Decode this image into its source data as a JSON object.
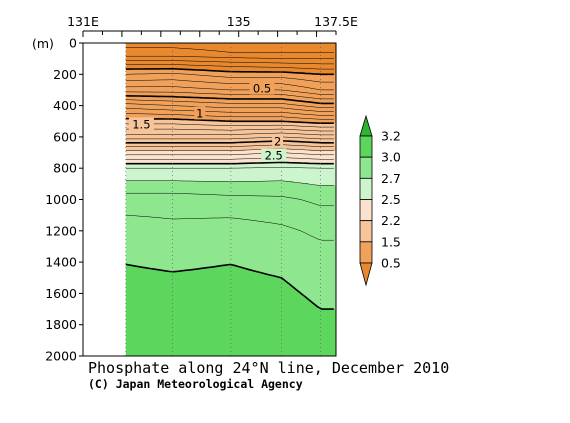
{
  "chart_data": {
    "type": "heatmap",
    "title": "Phosphate along 24°N line, December 2010",
    "credit": "(C) Japan Meteorological Agency",
    "x_axis": {
      "range": [
        131,
        137.5
      ],
      "tick_labels": [
        {
          "value": 131,
          "label": "131E"
        },
        {
          "value": 135,
          "label": "135"
        },
        {
          "value": 137.5,
          "label": "137.5E"
        }
      ]
    },
    "y_axis": {
      "unit_label": "(m)",
      "range": [
        0,
        2000
      ],
      "reversed": true,
      "ticks": [
        0,
        200,
        400,
        600,
        800,
        1000,
        1200,
        1400,
        1600,
        1800,
        2000
      ]
    },
    "data_start_lon": 132.1,
    "station_lons": [
      132.1,
      133.3,
      134.8,
      136.1,
      137.1
    ],
    "colorbar": {
      "labels": [
        "0.5",
        "1.5",
        "2.2",
        "2.5",
        "2.7",
        "3.0",
        "3.2"
      ],
      "levels": [
        0.5,
        1.5,
        2.2,
        2.5,
        2.7,
        3.0,
        3.2
      ],
      "bands": [
        {
          "range": [
            null,
            0.5
          ],
          "color": "#e8892f"
        },
        {
          "range": [
            0.5,
            1.5
          ],
          "color": "#f0a15a"
        },
        {
          "range": [
            1.5,
            2.2
          ],
          "color": "#f7c59a"
        },
        {
          "range": [
            2.2,
            2.5
          ],
          "color": "#fbe2cc"
        },
        {
          "range": [
            2.5,
            2.7
          ],
          "color": "#cdf5cd"
        },
        {
          "range": [
            2.7,
            3.0
          ],
          "color": "#8ee68e"
        },
        {
          "range": [
            3.0,
            3.2
          ],
          "color": "#5cd65c"
        },
        {
          "range": [
            3.2,
            null
          ],
          "color": "#2fb42f"
        }
      ]
    },
    "contour_labels": [
      {
        "text": "0.5",
        "value": 0.5,
        "lon": 135.6,
        "depth": 290
      },
      {
        "text": "1",
        "value": 1.0,
        "lon": 134.0,
        "depth": 450
      },
      {
        "text": "1.5",
        "value": 1.5,
        "lon": 132.5,
        "depth": 520
      },
      {
        "text": "2",
        "value": 2.0,
        "lon": 136.0,
        "depth": 630
      },
      {
        "text": "2.5",
        "value": 2.5,
        "lon": 135.9,
        "depth": 720
      }
    ],
    "profiles": [
      {
        "lon": 132.1,
        "depths": [
          0,
          60,
          100,
          150,
          200,
          300,
          400,
          500,
          600,
          700,
          800,
          1000,
          1200,
          1500,
          1800,
          2000
        ],
        "values": [
          0.08,
          0.12,
          0.25,
          0.45,
          0.6,
          0.85,
          1.25,
          1.55,
          1.85,
          2.25,
          2.6,
          2.85,
          2.95,
          3.02,
          3.05,
          3.06
        ]
      },
      {
        "lon": 133.3,
        "depths": [
          0,
          60,
          100,
          150,
          200,
          300,
          400,
          500,
          600,
          700,
          800,
          1000,
          1200,
          1500,
          1800,
          2000
        ],
        "values": [
          0.08,
          0.12,
          0.25,
          0.45,
          0.62,
          0.85,
          1.2,
          1.55,
          1.85,
          2.25,
          2.6,
          2.85,
          2.93,
          3.01,
          3.04,
          3.06
        ]
      },
      {
        "lon": 134.8,
        "depths": [
          0,
          60,
          100,
          150,
          200,
          300,
          400,
          500,
          600,
          700,
          800,
          1000,
          1200,
          1500,
          1800,
          2000
        ],
        "values": [
          0.07,
          0.1,
          0.22,
          0.4,
          0.55,
          0.8,
          1.15,
          1.5,
          1.85,
          2.25,
          2.6,
          2.83,
          2.95,
          3.02,
          3.05,
          3.07
        ]
      },
      {
        "lon": 136.1,
        "depths": [
          0,
          60,
          100,
          150,
          200,
          300,
          400,
          500,
          600,
          700,
          800,
          1000,
          1200,
          1500,
          1800,
          2000
        ],
        "values": [
          0.07,
          0.1,
          0.2,
          0.38,
          0.55,
          0.8,
          1.15,
          1.5,
          1.9,
          2.3,
          2.62,
          2.82,
          2.92,
          3.0,
          3.03,
          3.05
        ]
      },
      {
        "lon": 137.1,
        "depths": [
          0,
          60,
          100,
          150,
          200,
          300,
          400,
          500,
          600,
          700,
          800,
          1000,
          1200,
          1500,
          1800,
          2000
        ],
        "values": [
          0.07,
          0.1,
          0.2,
          0.35,
          0.5,
          0.7,
          1.05,
          1.45,
          1.85,
          2.25,
          2.6,
          2.78,
          2.88,
          2.98,
          3.01,
          3.02
        ]
      }
    ]
  }
}
